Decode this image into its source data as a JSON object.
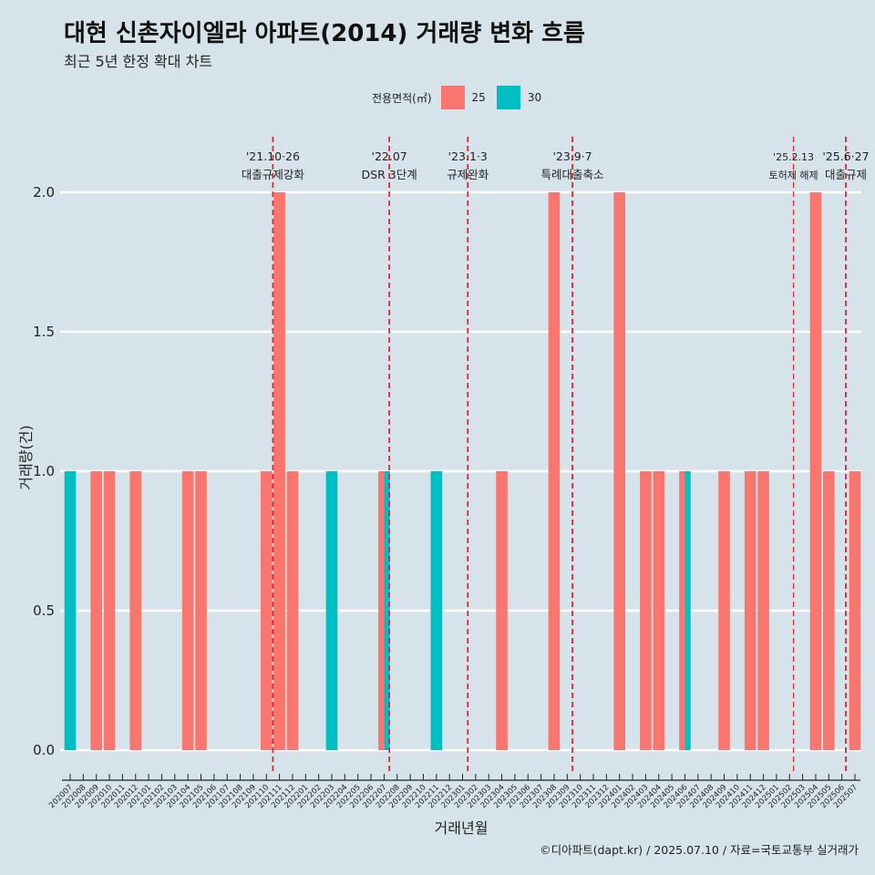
{
  "header": {
    "title": "대현 신촌자이엘라 아파트(2014) 거래량 변화 흐름",
    "subtitle": "최근 5년 한정 확대 차트"
  },
  "legend": {
    "title": "전용면적(㎡)",
    "items": [
      {
        "label": "25",
        "color": "#f8766d"
      },
      {
        "label": "30",
        "color": "#00bfc4"
      }
    ]
  },
  "footer": {
    "credit": "©디아파트(dapt.kr) / 2025.07.10 / 자료=국토교통부 실거래가"
  },
  "chart_data": {
    "type": "bar",
    "title": "대현 신촌자이엘라 아파트(2014) 거래량 변화 흐름",
    "xlabel": "거래년월",
    "ylabel": "거래량(건)",
    "ylim": [
      0,
      2
    ],
    "yticks": [
      "0.0",
      "0.5",
      "1.0",
      "1.5",
      "2.0"
    ],
    "categories": [
      "202007",
      "202008",
      "202009",
      "202010",
      "202011",
      "202012",
      "202101",
      "202102",
      "202103",
      "202104",
      "202105",
      "202106",
      "202107",
      "202108",
      "202109",
      "202110",
      "202111",
      "202112",
      "202201",
      "202202",
      "202203",
      "202204",
      "202205",
      "202206",
      "202207",
      "202208",
      "202209",
      "202210",
      "202211",
      "202212",
      "202301",
      "202302",
      "202303",
      "202304",
      "202305",
      "202306",
      "202307",
      "202308",
      "202309",
      "202310",
      "202311",
      "202312",
      "202401",
      "202402",
      "202403",
      "202404",
      "202405",
      "202406",
      "202407",
      "202408",
      "202409",
      "202410",
      "202411",
      "202412",
      "202501",
      "202502",
      "202503",
      "202504",
      "202505",
      "202506",
      "202507"
    ],
    "series": [
      {
        "name": "25",
        "color": "#f8766d",
        "values": [
          0,
          0,
          1,
          1,
          0,
          1,
          0,
          0,
          0,
          1,
          1,
          0,
          0,
          0,
          0,
          1,
          2,
          1,
          0,
          0,
          0,
          0,
          0,
          0,
          1,
          0,
          0,
          0,
          0,
          0,
          0,
          0,
          0,
          1,
          0,
          0,
          0,
          2,
          0,
          0,
          0,
          0,
          2,
          0,
          1,
          1,
          0,
          1,
          0,
          0,
          1,
          0,
          1,
          1,
          0,
          0,
          0,
          2,
          1,
          0,
          1
        ]
      },
      {
        "name": "30",
        "color": "#00bfc4",
        "values": [
          1,
          0,
          0,
          0,
          0,
          0,
          0,
          0,
          0,
          0,
          0,
          0,
          0,
          0,
          0,
          0,
          0,
          0,
          0,
          0,
          1,
          0,
          0,
          0,
          1,
          0,
          0,
          0,
          1,
          0,
          0,
          0,
          0,
          0,
          0,
          0,
          0,
          0,
          0,
          0,
          0,
          0,
          0,
          0,
          0,
          0,
          0,
          1,
          0,
          0,
          0,
          0,
          0,
          0,
          0,
          0,
          0,
          0,
          0,
          0,
          0
        ]
      }
    ],
    "annotations": [
      {
        "date": "'21.10·26",
        "label": "대출규제강화",
        "x_index": 15.5
      },
      {
        "date": "'22.07",
        "label": "DSR 3단계",
        "x_index": 24.4
      },
      {
        "date": "'23.1·3",
        "label": "규제완화",
        "x_index": 30.4
      },
      {
        "date": "'23.9·7",
        "label": "특례대출축소",
        "x_index": 38.4
      },
      {
        "date": "'25.2.13",
        "label": "토허제 해제",
        "x_index": 55.3
      },
      {
        "date": "'25.6·27",
        "label": "대출규제",
        "x_index": 59.3
      }
    ]
  }
}
